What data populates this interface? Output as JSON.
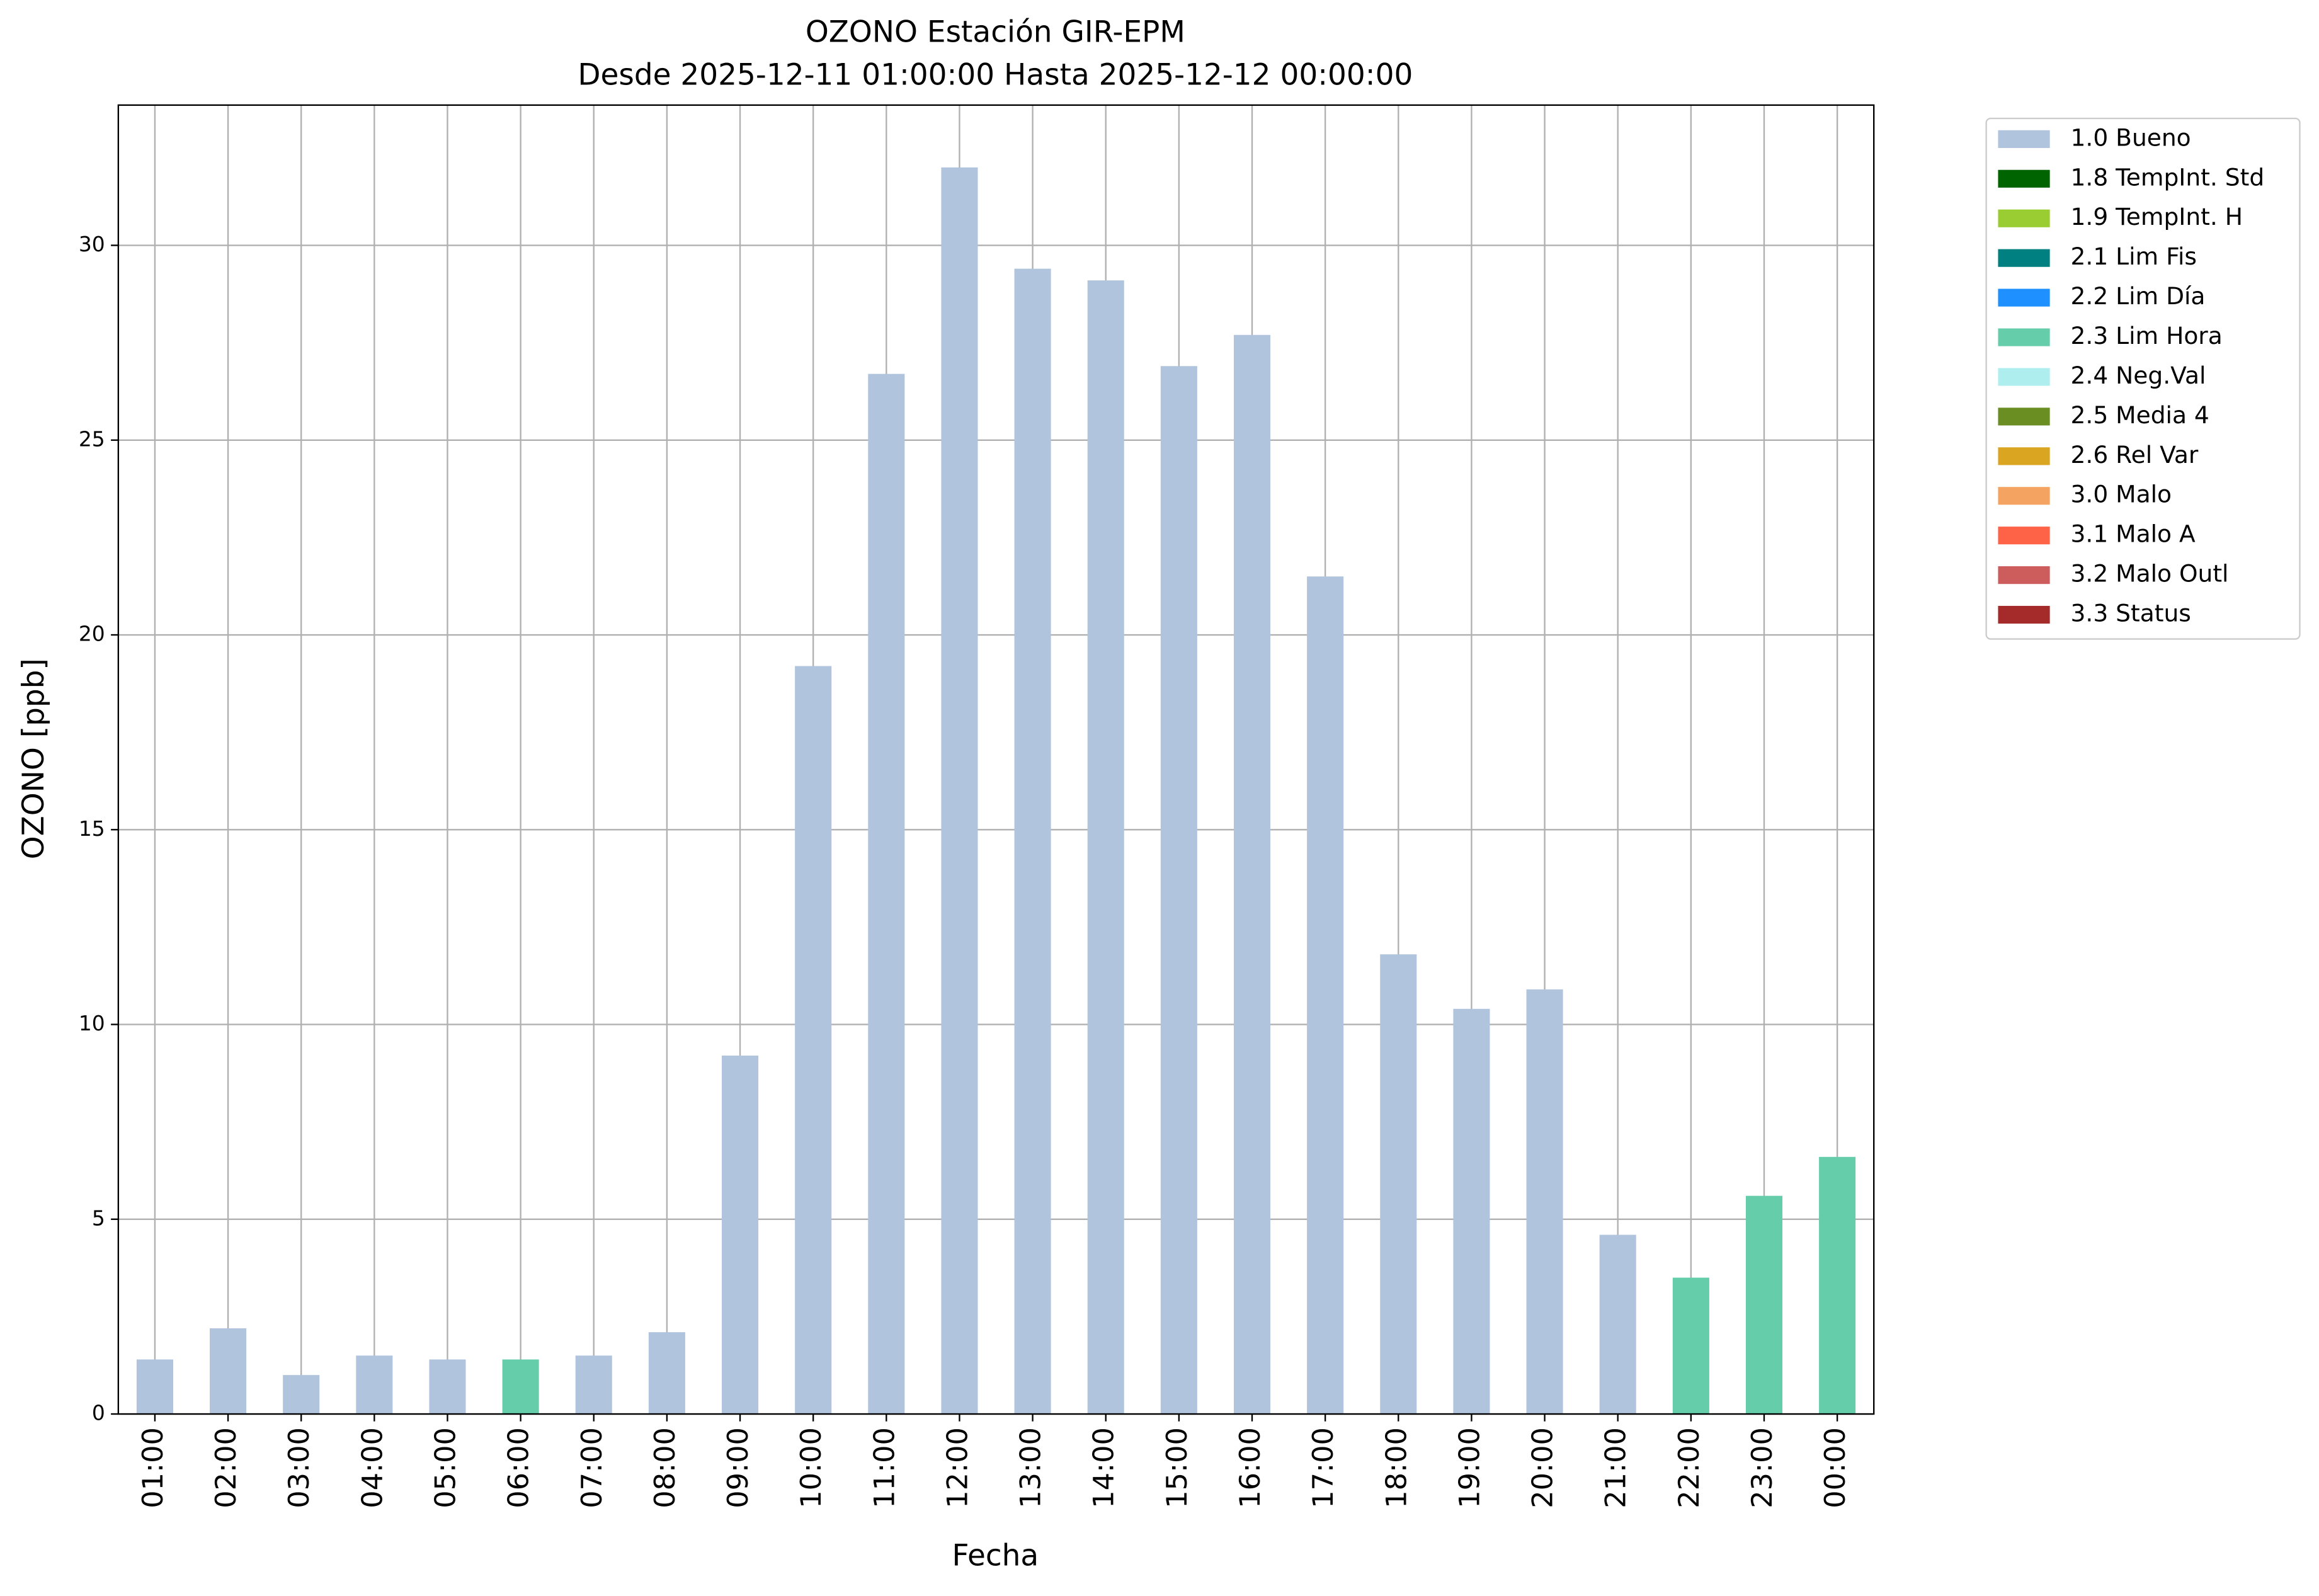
{
  "chart_data": {
    "type": "bar",
    "stacked": true,
    "title": "OZONO Estación GIR-EPM",
    "subtitle": "Desde 2025-12-11 01:00:00 Hasta 2025-12-12 00:00:00",
    "x_label": "Fecha",
    "y_label": "OZONO [ppb]",
    "categories": [
      "01:00",
      "02:00",
      "03:00",
      "04:00",
      "05:00",
      "06:00",
      "07:00",
      "08:00",
      "09:00",
      "10:00",
      "11:00",
      "12:00",
      "13:00",
      "14:00",
      "15:00",
      "16:00",
      "17:00",
      "18:00",
      "19:00",
      "20:00",
      "21:00",
      "22:00",
      "23:00",
      "00:00"
    ],
    "series": [
      {
        "name": "1.0 Bueno",
        "color": "#b0c4de",
        "values": [
          1.4,
          2.2,
          1.0,
          1.5,
          1.4,
          null,
          1.5,
          2.1,
          9.2,
          19.2,
          26.7,
          32.0,
          29.4,
          29.1,
          26.9,
          27.7,
          21.5,
          11.8,
          10.4,
          10.9,
          4.6,
          null,
          null,
          null
        ]
      },
      {
        "name": "1.8 TempInt. Std",
        "color": "#006400",
        "values": [
          null,
          null,
          null,
          null,
          null,
          null,
          null,
          null,
          null,
          null,
          null,
          null,
          null,
          null,
          null,
          null,
          null,
          null,
          null,
          null,
          null,
          null,
          null,
          null
        ]
      },
      {
        "name": "1.9 TempInt. H",
        "color": "#9acd32",
        "values": [
          null,
          null,
          null,
          null,
          null,
          null,
          null,
          null,
          null,
          null,
          null,
          null,
          null,
          null,
          null,
          null,
          null,
          null,
          null,
          null,
          null,
          null,
          null,
          null
        ]
      },
      {
        "name": "2.1 Lim Fis",
        "color": "#008080",
        "values": [
          null,
          null,
          null,
          null,
          null,
          null,
          null,
          null,
          null,
          null,
          null,
          null,
          null,
          null,
          null,
          null,
          null,
          null,
          null,
          null,
          null,
          null,
          null,
          null
        ]
      },
      {
        "name": "2.2 Lim Día",
        "color": "#1e90ff",
        "values": [
          null,
          null,
          null,
          null,
          null,
          null,
          null,
          null,
          null,
          null,
          null,
          null,
          null,
          null,
          null,
          null,
          null,
          null,
          null,
          null,
          null,
          null,
          null,
          null
        ]
      },
      {
        "name": "2.3 Lim Hora",
        "color": "#66cdaa",
        "values": [
          null,
          null,
          null,
          null,
          null,
          1.4,
          null,
          null,
          null,
          null,
          null,
          null,
          null,
          null,
          null,
          null,
          null,
          null,
          null,
          null,
          null,
          3.5,
          5.6,
          6.6
        ]
      },
      {
        "name": "2.4 Neg.Val",
        "color": "#afeeee",
        "values": [
          null,
          null,
          null,
          null,
          null,
          null,
          null,
          null,
          null,
          null,
          null,
          null,
          null,
          null,
          null,
          null,
          null,
          null,
          null,
          null,
          null,
          null,
          null,
          null
        ]
      },
      {
        "name": "2.5 Media 4",
        "color": "#6b8e23",
        "values": [
          null,
          null,
          null,
          null,
          null,
          null,
          null,
          null,
          null,
          null,
          null,
          null,
          null,
          null,
          null,
          null,
          null,
          null,
          null,
          null,
          null,
          null,
          null,
          null
        ]
      },
      {
        "name": "2.6 Rel Var",
        "color": "#daa520",
        "values": [
          null,
          null,
          null,
          null,
          null,
          null,
          null,
          null,
          null,
          null,
          null,
          null,
          null,
          null,
          null,
          null,
          null,
          null,
          null,
          null,
          null,
          null,
          null,
          null
        ]
      },
      {
        "name": "3.0 Malo",
        "color": "#f4a460",
        "values": [
          null,
          null,
          null,
          null,
          null,
          null,
          null,
          null,
          null,
          null,
          null,
          null,
          null,
          null,
          null,
          null,
          null,
          null,
          null,
          null,
          null,
          null,
          null,
          null
        ]
      },
      {
        "name": "3.1 Malo A",
        "color": "#ff6347",
        "values": [
          null,
          null,
          null,
          null,
          null,
          null,
          null,
          null,
          null,
          null,
          null,
          null,
          null,
          null,
          null,
          null,
          null,
          null,
          null,
          null,
          null,
          null,
          null,
          null
        ]
      },
      {
        "name": "3.2 Malo Outl",
        "color": "#cd5c5c",
        "values": [
          null,
          null,
          null,
          null,
          null,
          null,
          null,
          null,
          null,
          null,
          null,
          null,
          null,
          null,
          null,
          null,
          null,
          null,
          null,
          null,
          null,
          null,
          null,
          null
        ]
      },
      {
        "name": "3.3 Status",
        "color": "#a52a2a",
        "values": [
          null,
          null,
          null,
          null,
          null,
          null,
          null,
          null,
          null,
          null,
          null,
          null,
          null,
          null,
          null,
          null,
          null,
          null,
          null,
          null,
          null,
          null,
          null,
          null
        ]
      }
    ],
    "ylim": [
      0,
      33.6
    ],
    "yticks": [
      0,
      5,
      10,
      15,
      20,
      25,
      30
    ],
    "grid": true,
    "legend": "outside-right"
  }
}
